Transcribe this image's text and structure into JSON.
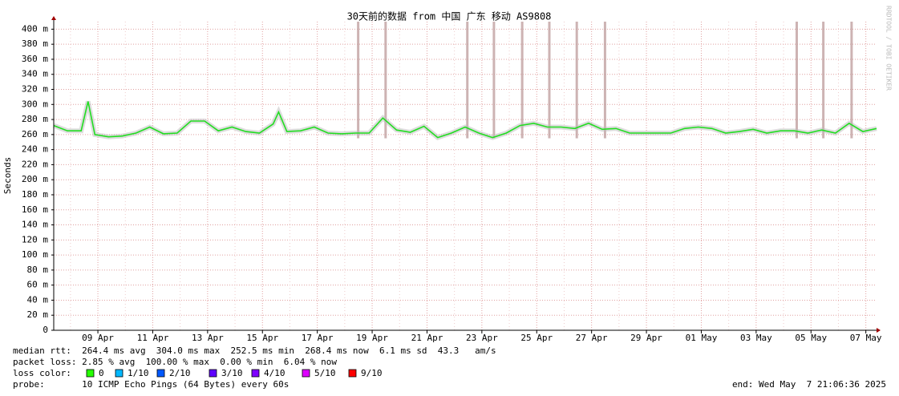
{
  "chart_data": {
    "type": "line",
    "title": "30天前的数据 from 中国 广东 移动 AS9808",
    "y_label": "Seconds",
    "watermark": "RRDTOOL / TOBI OETIKER",
    "x": [
      0,
      0.5,
      1,
      1.25,
      1.5,
      2,
      2.5,
      3,
      3.5,
      4,
      4.5,
      5,
      5.5,
      6,
      6.5,
      7,
      7.5,
      8,
      8.2,
      8.5,
      9,
      9.5,
      10,
      10.5,
      11,
      11.5,
      12,
      12.5,
      13,
      13.5,
      14,
      14.5,
      15,
      15.5,
      16,
      16.5,
      17,
      17.5,
      18,
      18.5,
      19,
      19.5,
      20,
      20.5,
      21,
      21.5,
      22,
      22.5,
      23,
      23.5,
      24,
      24.5,
      25,
      25.5,
      26,
      26.5,
      27,
      27.5,
      28,
      28.5,
      29,
      29.5,
      30
    ],
    "series": [
      {
        "color": "#22dd22",
        "values": [
          0.272,
          0.265,
          0.265,
          0.304,
          0.26,
          0.257,
          0.258,
          0.262,
          0.27,
          0.261,
          0.262,
          0.278,
          0.278,
          0.265,
          0.27,
          0.264,
          0.262,
          0.274,
          0.29,
          0.264,
          0.265,
          0.27,
          0.262,
          0.261,
          0.262,
          0.262,
          0.282,
          0.266,
          0.263,
          0.271,
          0.256,
          0.262,
          0.27,
          0.262,
          0.256,
          0.262,
          0.272,
          0.275,
          0.27,
          0.27,
          0.268,
          0.275,
          0.267,
          0.268,
          0.262,
          0.262,
          0.262,
          0.262,
          0.268,
          0.27,
          0.268,
          0.262,
          0.264,
          0.267,
          0.262,
          0.265,
          0.265,
          0.262,
          0.266,
          0.262,
          0.275,
          0.264,
          0.268
        ]
      }
    ],
    "spikes": {
      "color": "#c0a0a0",
      "x": [
        11.1,
        12.1,
        15.08,
        16.05,
        17.08,
        18.07,
        19.07,
        20.1,
        27.09,
        28.06,
        29.09
      ],
      "values": [
        0.41,
        0.41,
        0.41,
        0.41,
        0.41,
        0.41,
        0.41,
        0.41,
        0.41,
        0.41,
        0.41
      ]
    },
    "xlim": [
      0,
      30
    ],
    "xticks": [
      {
        "value": 1.61,
        "label": "09 Apr"
      },
      {
        "value": 3.61,
        "label": "11 Apr"
      },
      {
        "value": 5.61,
        "label": "13 Apr"
      },
      {
        "value": 7.61,
        "label": "15 Apr"
      },
      {
        "value": 9.61,
        "label": "17 Apr"
      },
      {
        "value": 11.61,
        "label": "19 Apr"
      },
      {
        "value": 13.61,
        "label": "21 Apr"
      },
      {
        "value": 15.61,
        "label": "23 Apr"
      },
      {
        "value": 17.61,
        "label": "25 Apr"
      },
      {
        "value": 19.61,
        "label": "27 Apr"
      },
      {
        "value": 21.61,
        "label": "29 Apr"
      },
      {
        "value": 23.61,
        "label": "01 May"
      },
      {
        "value": 25.61,
        "label": "03 May"
      },
      {
        "value": 27.61,
        "label": "05 May"
      },
      {
        "value": 29.61,
        "label": "07 May"
      }
    ],
    "ylim": [
      0,
      0.41
    ],
    "yticks": [
      0,
      {
        "value": 0.02,
        "label": "20 m"
      },
      {
        "value": 0.04,
        "label": "40 m"
      },
      {
        "value": 0.06,
        "label": "60 m"
      },
      {
        "value": 0.08,
        "label": "80 m"
      },
      {
        "value": 0.1,
        "label": "100 m"
      },
      {
        "value": 0.12,
        "label": "120 m"
      },
      {
        "value": 0.14,
        "label": "140 m"
      },
      {
        "value": 0.16,
        "label": "160 m"
      },
      {
        "value": 0.18,
        "label": "180 m"
      },
      {
        "value": 0.2,
        "label": "200 m"
      },
      {
        "value": 0.22,
        "label": "220 m"
      },
      {
        "value": 0.24,
        "label": "240 m"
      },
      {
        "value": 0.26,
        "label": "260 m"
      },
      {
        "value": 0.28,
        "label": "280 m"
      },
      {
        "value": 0.3,
        "label": "300 m"
      },
      {
        "value": 0.32,
        "label": "320 m"
      },
      {
        "value": 0.34,
        "label": "340 m"
      },
      {
        "value": 0.36,
        "label": "360 m"
      },
      {
        "value": 0.38,
        "label": "380 m"
      },
      {
        "value": 0.4,
        "label": "400 m"
      }
    ],
    "grid": true
  },
  "footer": {
    "median": "median rtt:  264.4 ms avg  304.0 ms max  252.5 ms min  268.4 ms now  6.1 ms sd  43.3   am/s",
    "loss": "packet loss: 2.85 % avg  100.00 % max  0.00 % min  6.04 % now",
    "loss_color_label": "loss color:",
    "loss_colors": [
      {
        "label": "0",
        "color": "#26ff00"
      },
      {
        "label": "1/10",
        "color": "#00b8ff"
      },
      {
        "label": "2/10",
        "color": "#0059ff"
      },
      {
        "label": "3/10",
        "color": "#5e00ff"
      },
      {
        "label": "4/10",
        "color": "#7e00ff"
      },
      {
        "label": "5/10",
        "color": "#dd00ff"
      },
      {
        "label": "9/10",
        "color": "#ff0000"
      }
    ],
    "probe": "probe:       10 ICMP Echo Pings (64 Bytes) every 60s",
    "end": "end: Wed May  7 21:06:36 2025"
  }
}
